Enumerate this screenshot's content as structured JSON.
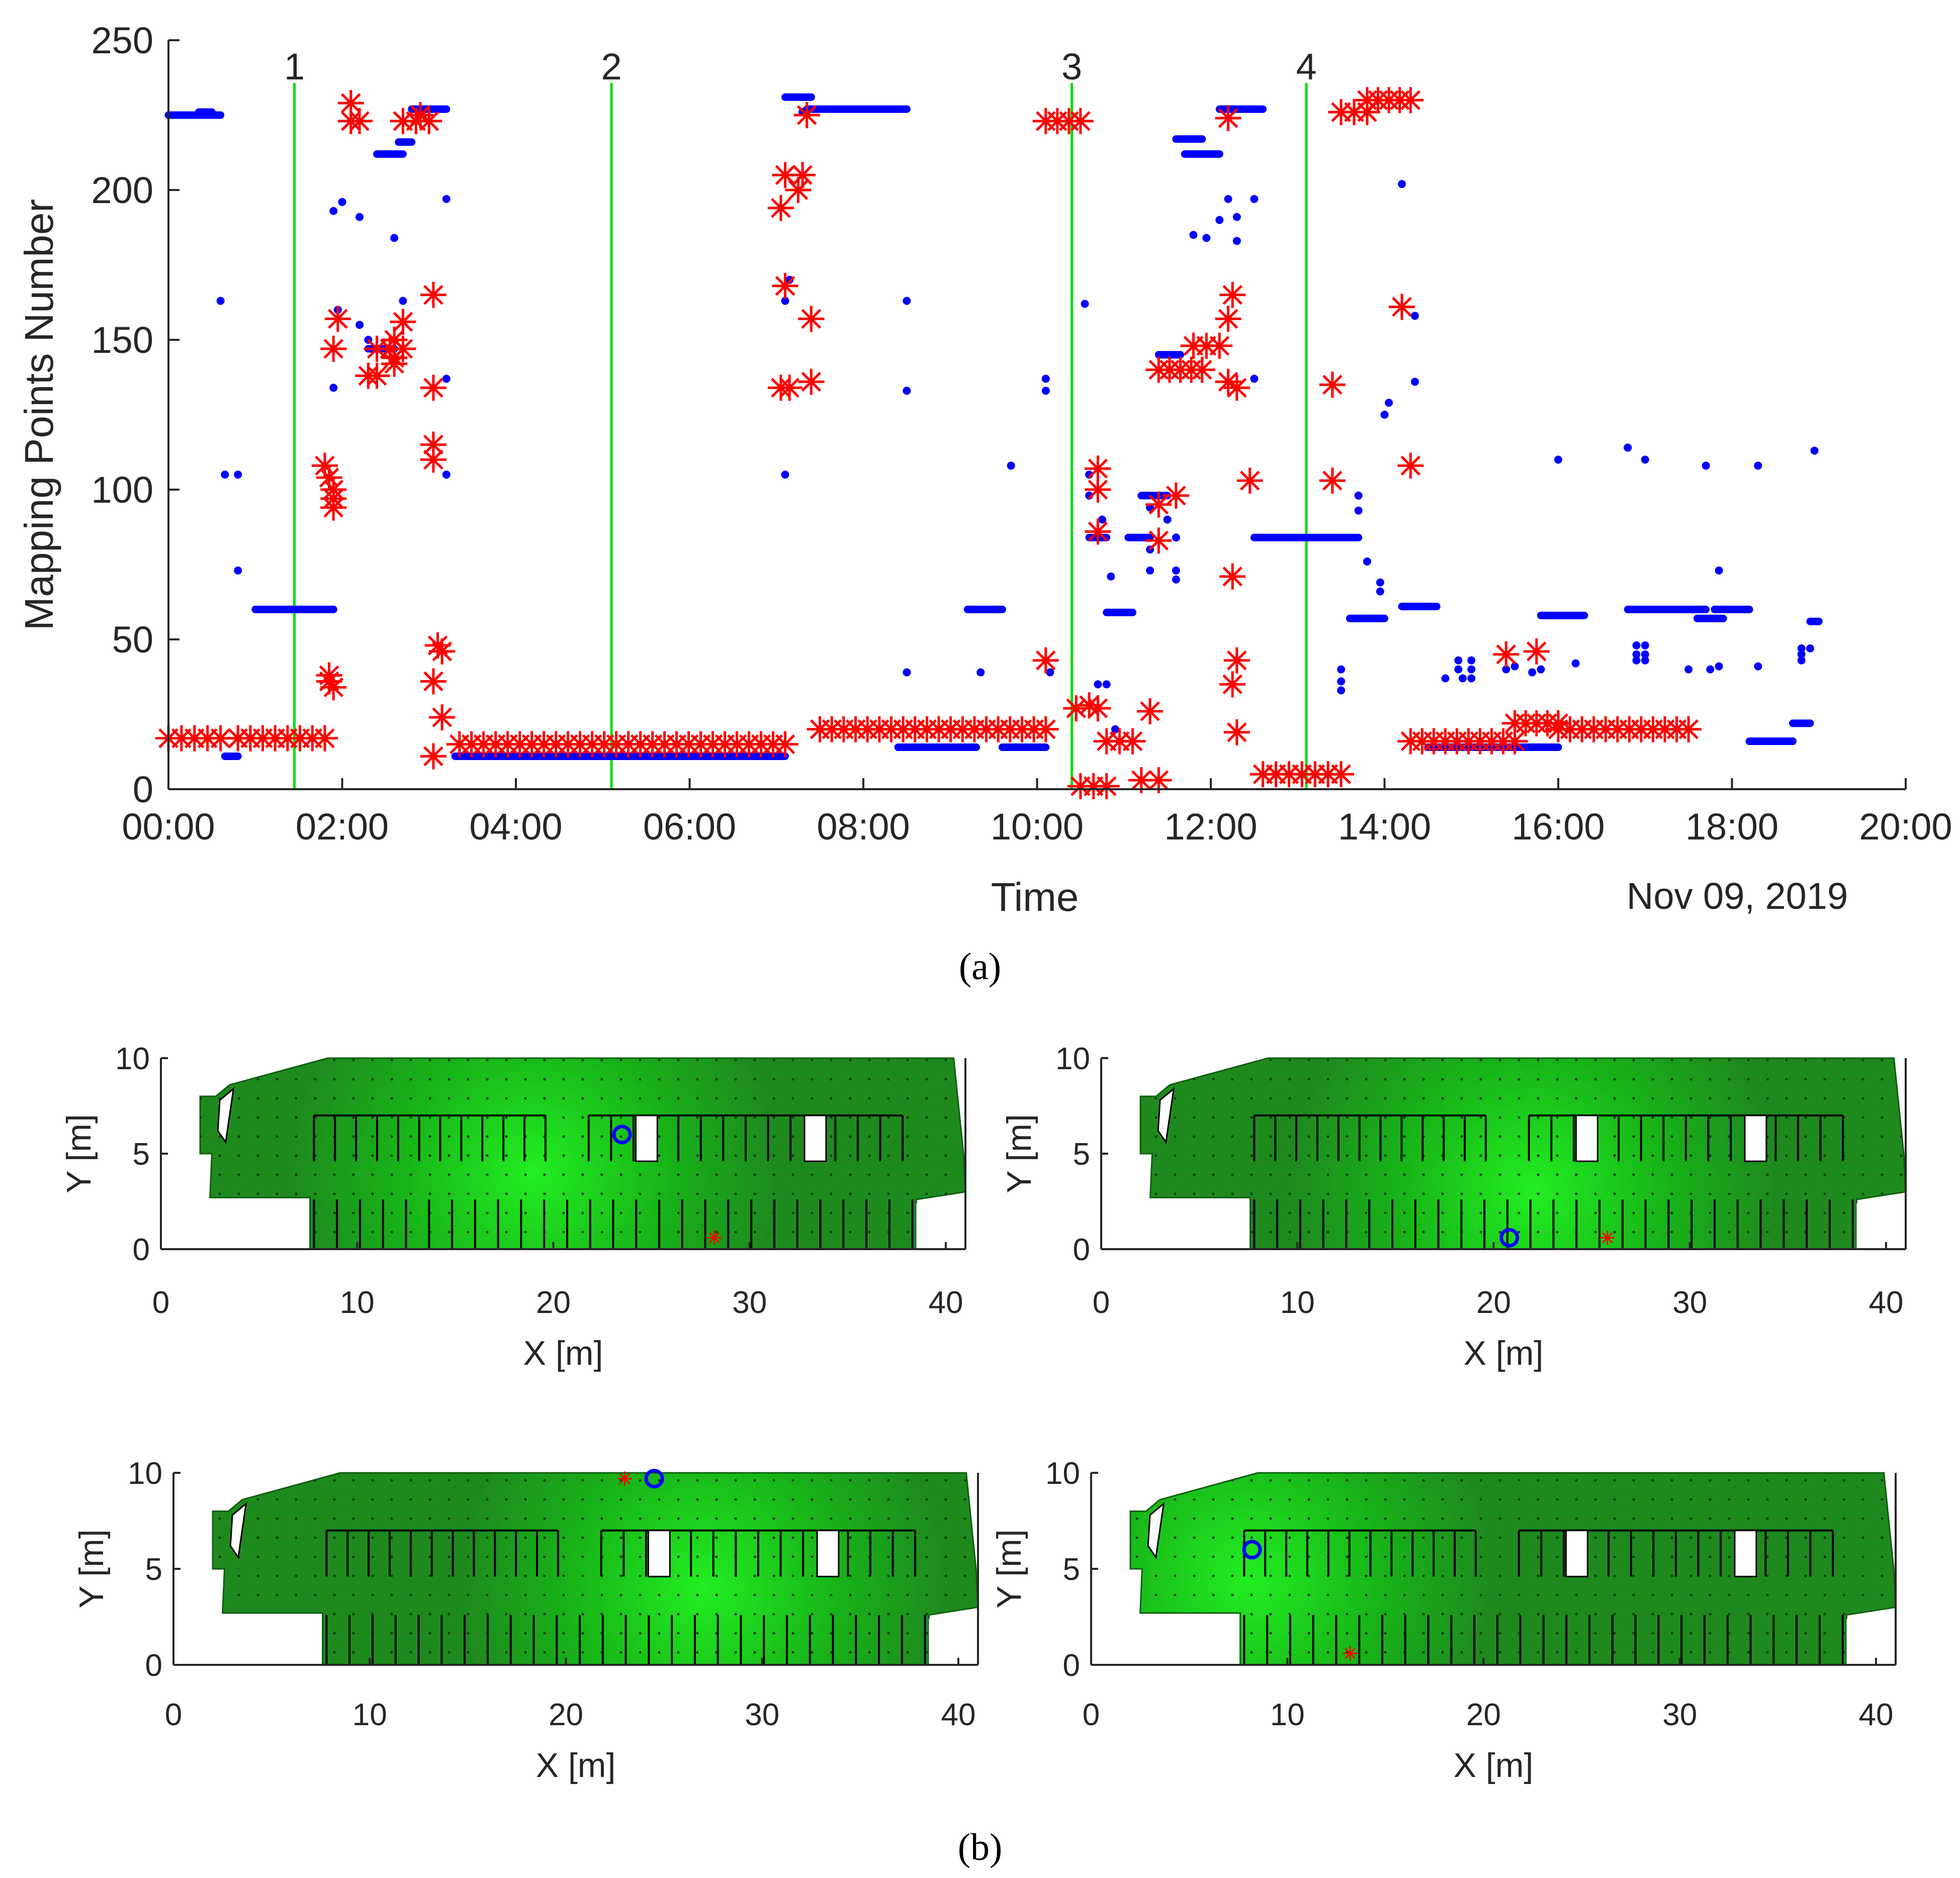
{
  "chart_data": [
    {
      "type": "scatter",
      "panel": "a",
      "caption": "(a)",
      "xlabel": "Time",
      "ylabel": "Mapping Points Number",
      "date_label": "Nov 09, 2019",
      "xlim": [
        0,
        20
      ],
      "ylim": [
        0,
        250
      ],
      "xticks": [
        0,
        2,
        4,
        6,
        8,
        10,
        12,
        14,
        16,
        18,
        20
      ],
      "xtick_labels": [
        "00:00",
        "02:00",
        "04:00",
        "06:00",
        "08:00",
        "10:00",
        "12:00",
        "14:00",
        "16:00",
        "18:00",
        "20:00"
      ],
      "yticks": [
        0,
        50,
        100,
        150,
        200,
        250
      ],
      "ytick_labels": [
        "0",
        "50",
        "100",
        "150",
        "200",
        "250"
      ],
      "colors": {
        "blue_series": "#0000ff",
        "red_series": "#ff0000",
        "marker_line": "#00dd00"
      },
      "markers": [
        {
          "label": "1",
          "x": 1.45
        },
        {
          "label": "2",
          "x": 5.1
        },
        {
          "label": "3",
          "x": 10.4
        },
        {
          "label": "4",
          "x": 13.1
        }
      ],
      "series": [
        {
          "name": "blue dots",
          "style": "dot",
          "segments": [
            [
              0.0,
              0.6,
              225
            ],
            [
              0.35,
              0.5,
              226
            ],
            [
              0.65,
              0.8,
              11
            ],
            [
              1.0,
              1.9,
              60
            ],
            [
              2.3,
              2.6,
              147
            ],
            [
              2.4,
              2.7,
              212
            ],
            [
              2.65,
              2.8,
              216
            ],
            [
              2.8,
              3.2,
              227
            ],
            [
              3.3,
              7.1,
              11
            ],
            [
              7.1,
              7.4,
              231
            ],
            [
              7.35,
              8.5,
              227
            ],
            [
              8.4,
              9.3,
              14
            ],
            [
              9.2,
              9.6,
              60
            ],
            [
              9.6,
              10.1,
              14
            ],
            [
              10.6,
              10.8,
              84
            ],
            [
              10.8,
              11.1,
              59
            ],
            [
              11.05,
              11.3,
              84
            ],
            [
              11.2,
              11.5,
              98
            ],
            [
              11.4,
              11.65,
              145
            ],
            [
              11.6,
              11.9,
              217
            ],
            [
              11.7,
              12.1,
              212
            ],
            [
              12.1,
              12.6,
              227
            ],
            [
              12.5,
              13.7,
              84
            ],
            [
              13.6,
              14.0,
              57
            ],
            [
              14.2,
              14.6,
              61
            ],
            [
              14.5,
              16.0,
              14
            ],
            [
              15.8,
              16.3,
              58
            ],
            [
              16.8,
              17.7,
              60
            ],
            [
              17.6,
              17.9,
              57
            ],
            [
              17.8,
              18.2,
              60
            ],
            [
              18.2,
              18.7,
              16
            ],
            [
              18.7,
              18.9,
              22
            ],
            [
              18.9,
              19.0,
              56
            ]
          ],
          "points": [
            [
              0.6,
              163
            ],
            [
              0.65,
              105
            ],
            [
              0.8,
              105
            ],
            [
              0.8,
              73
            ],
            [
              1.9,
              193
            ],
            [
              1.95,
              160
            ],
            [
              1.9,
              134
            ],
            [
              2.0,
              196
            ],
            [
              2.2,
              191
            ],
            [
              2.2,
              155
            ],
            [
              2.3,
              150
            ],
            [
              2.6,
              184
            ],
            [
              2.7,
              163
            ],
            [
              3.2,
              197
            ],
            [
              3.2,
              137
            ],
            [
              3.2,
              105
            ],
            [
              7.1,
              105
            ],
            [
              7.1,
              163
            ],
            [
              7.15,
              170
            ],
            [
              7.3,
              226
            ],
            [
              8.5,
              163
            ],
            [
              8.5,
              133
            ],
            [
              8.5,
              39
            ],
            [
              9.35,
              39
            ],
            [
              9.7,
              108
            ],
            [
              10.1,
              137
            ],
            [
              10.1,
              133
            ],
            [
              10.15,
              39
            ],
            [
              10.55,
              162
            ],
            [
              10.6,
              105
            ],
            [
              10.6,
              98
            ],
            [
              10.7,
              35
            ],
            [
              10.75,
              90
            ],
            [
              10.8,
              35
            ],
            [
              10.85,
              71
            ],
            [
              10.9,
              20
            ],
            [
              11.3,
              94
            ],
            [
              11.3,
              80
            ],
            [
              11.3,
              73
            ],
            [
              11.5,
              90
            ],
            [
              11.6,
              70
            ],
            [
              11.6,
              73
            ],
            [
              11.6,
              84
            ],
            [
              11.8,
              185
            ],
            [
              11.95,
              184
            ],
            [
              12.1,
              190
            ],
            [
              12.2,
              197
            ],
            [
              12.3,
              191
            ],
            [
              12.3,
              183
            ],
            [
              12.5,
              197
            ],
            [
              12.5,
              137
            ],
            [
              13.5,
              40
            ],
            [
              13.5,
              36
            ],
            [
              13.5,
              33
            ],
            [
              13.7,
              93
            ],
            [
              13.7,
              98
            ],
            [
              13.8,
              76
            ],
            [
              13.95,
              69
            ],
            [
              13.95,
              66
            ],
            [
              14.0,
              125
            ],
            [
              14.05,
              129
            ],
            [
              14.2,
              202
            ],
            [
              14.35,
              136
            ],
            [
              14.35,
              158
            ],
            [
              14.7,
              37
            ],
            [
              14.85,
              43
            ],
            [
              14.85,
              40
            ],
            [
              14.9,
              37
            ],
            [
              15.0,
              43
            ],
            [
              15.0,
              40
            ],
            [
              15.0,
              37
            ],
            [
              15.4,
              40
            ],
            [
              15.5,
              41
            ],
            [
              15.7,
              39
            ],
            [
              15.8,
              40
            ],
            [
              16.0,
              110
            ],
            [
              16.2,
              42
            ],
            [
              16.8,
              114
            ],
            [
              16.9,
              48
            ],
            [
              16.9,
              45
            ],
            [
              16.9,
              43
            ],
            [
              17.0,
              110
            ],
            [
              17.0,
              48
            ],
            [
              17.0,
              45
            ],
            [
              17.0,
              43
            ],
            [
              17.5,
              40
            ],
            [
              17.7,
              108
            ],
            [
              17.75,
              40
            ],
            [
              17.85,
              73
            ],
            [
              17.85,
              41
            ],
            [
              18.3,
              108
            ],
            [
              18.3,
              41
            ],
            [
              18.8,
              47
            ],
            [
              18.8,
              45
            ],
            [
              18.8,
              43
            ],
            [
              18.9,
              47
            ],
            [
              18.95,
              113
            ]
          ]
        },
        {
          "name": "red stars",
          "style": "star",
          "segments": [
            [
              0.0,
              0.6,
              17
            ],
            [
              0.8,
              1.8,
              17
            ],
            [
              2.1,
              2.2,
              223
            ],
            [
              2.3,
              2.4,
              138
            ],
            [
              2.4,
              2.7,
              147
            ],
            [
              2.7,
              3.0,
              223
            ],
            [
              3.35,
              7.1,
              15
            ],
            [
              7.1,
              7.3,
              205
            ],
            [
              7.5,
              10.1,
              20
            ],
            [
              10.1,
              10.5,
              223
            ],
            [
              10.5,
              10.8,
              1
            ],
            [
              10.8,
              11.1,
              16
            ],
            [
              11.2,
              11.4,
              3
            ],
            [
              11.4,
              11.9,
              140
            ],
            [
              11.8,
              12.1,
              148
            ],
            [
              12.6,
              13.5,
              5
            ],
            [
              13.5,
              13.8,
              226
            ],
            [
              13.8,
              14.3,
              230
            ],
            [
              14.3,
              15.5,
              16
            ],
            [
              15.5,
              16.0,
              22
            ],
            [
              16.0,
              17.5,
              20
            ]
          ],
          "points": [
            [
              1.8,
              108
            ],
            [
              1.85,
              104
            ],
            [
              1.9,
              100
            ],
            [
              1.9,
              97
            ],
            [
              1.9,
              94
            ],
            [
              1.85,
              38
            ],
            [
              1.85,
              36
            ],
            [
              1.9,
              34
            ],
            [
              1.9,
              147
            ],
            [
              1.95,
              157
            ],
            [
              2.6,
              142
            ],
            [
              2.6,
              144
            ],
            [
              2.6,
              150
            ],
            [
              2.7,
              156
            ],
            [
              2.1,
              229
            ],
            [
              2.9,
              225
            ],
            [
              3.05,
              165
            ],
            [
              3.05,
              134
            ],
            [
              3.05,
              115
            ],
            [
              3.05,
              110
            ],
            [
              3.1,
              48
            ],
            [
              3.05,
              36
            ],
            [
              3.15,
              46
            ],
            [
              3.15,
              24
            ],
            [
              3.05,
              11
            ],
            [
              7.05,
              194
            ],
            [
              7.1,
              168
            ],
            [
              7.05,
              134
            ],
            [
              7.15,
              134
            ],
            [
              7.25,
              200
            ],
            [
              7.35,
              225
            ],
            [
              7.4,
              157
            ],
            [
              7.4,
              136
            ],
            [
              10.1,
              43
            ],
            [
              10.45,
              27
            ],
            [
              10.6,
              28
            ],
            [
              10.7,
              107
            ],
            [
              10.7,
              100
            ],
            [
              10.7,
              86
            ],
            [
              10.7,
              27
            ],
            [
              11.3,
              26
            ],
            [
              11.4,
              95
            ],
            [
              11.4,
              83
            ],
            [
              11.6,
              98
            ],
            [
              12.25,
              165
            ],
            [
              12.2,
              157
            ],
            [
              12.2,
              136
            ],
            [
              12.3,
              134
            ],
            [
              12.25,
              71
            ],
            [
              12.3,
              43
            ],
            [
              12.25,
              35
            ],
            [
              12.3,
              19
            ],
            [
              12.2,
              224
            ],
            [
              12.45,
              103
            ],
            [
              13.4,
              103
            ],
            [
              13.4,
              135
            ],
            [
              14.2,
              161
            ],
            [
              14.3,
              108
            ],
            [
              15.4,
              45
            ],
            [
              15.75,
              46
            ]
          ]
        }
      ]
    },
    {
      "type": "heatmap",
      "panel": "b",
      "caption": "(b)",
      "description_free": true,
      "xlabel": "X [m]",
      "ylabel": "Y [m]",
      "xlim": [
        0,
        41
      ],
      "ylim": [
        0,
        10
      ],
      "xticks": [
        0,
        10,
        20,
        30,
        40
      ],
      "xtick_labels": [
        "0",
        "10",
        "20",
        "30",
        "40"
      ],
      "yticks": [
        0,
        5,
        10
      ],
      "ytick_labels": [
        "0",
        "5",
        "10"
      ],
      "colors": {
        "dark_green": "#1e8a1e",
        "bright_green": "#22ee22",
        "estimate": "#0000ff",
        "truth": "#ff0000"
      },
      "subplots": [
        {
          "event": "1",
          "estimate": [
            23.5,
            6.0
          ],
          "truth": [
            28.2,
            0.6
          ],
          "hotspot": [
            19.0,
            4.0
          ]
        },
        {
          "event": "2",
          "estimate": [
            20.8,
            0.6
          ],
          "truth": [
            25.8,
            0.6
          ],
          "hotspot": [
            22.0,
            3.0
          ]
        },
        {
          "event": "3",
          "estimate": [
            24.5,
            9.7
          ],
          "truth": [
            23.0,
            9.7
          ],
          "hotspot": [
            27.0,
            4.0
          ]
        },
        {
          "event": "4",
          "estimate": [
            8.2,
            6.0
          ],
          "truth": [
            13.2,
            0.6
          ],
          "hotspot": [
            8.0,
            4.5
          ]
        }
      ]
    }
  ]
}
